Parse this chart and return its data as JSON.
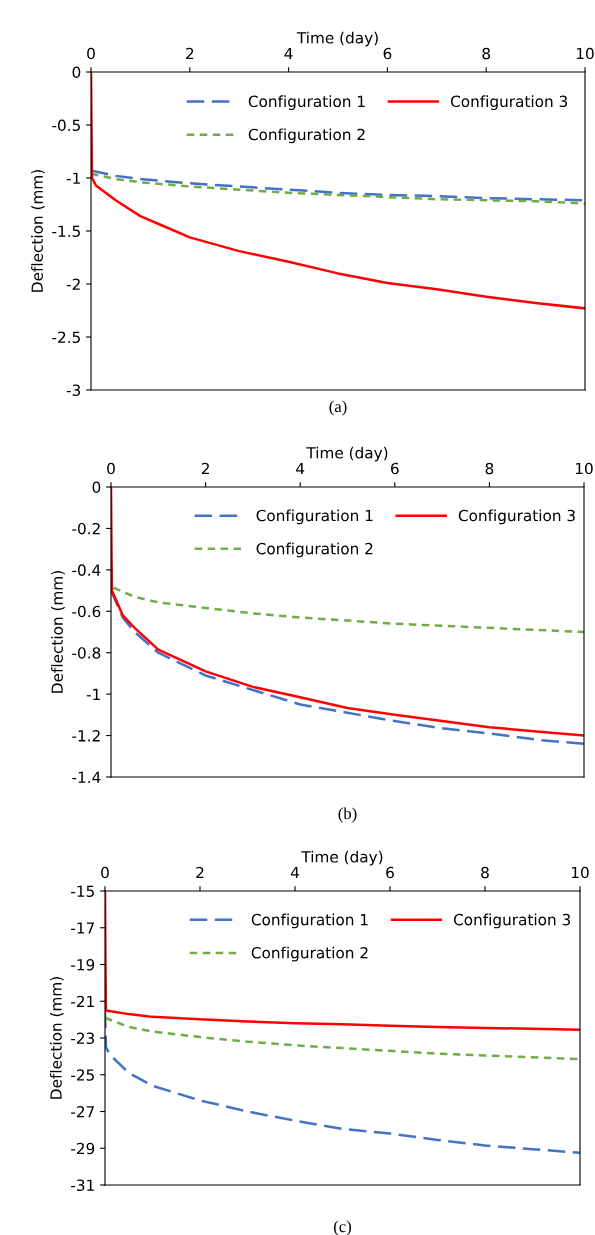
{
  "chart_data": [
    {
      "type": "line",
      "xlabel": "Time (day)",
      "ylabel": "Deflection (mm)",
      "xlim": [
        0,
        10
      ],
      "xticks": [
        0,
        2,
        4,
        6,
        8,
        10
      ],
      "ylim": [
        -3,
        0
      ],
      "yticks": [
        0,
        -0.5,
        -1,
        -1.5,
        -2,
        -2.5,
        -3
      ],
      "grid": false,
      "legend": "top",
      "annotations": [
        "(a)"
      ],
      "series": [
        {
          "name": "Configuration 1",
          "color": "#4472c4",
          "line_style": "dashed",
          "x": [
            0,
            0.5,
            1,
            2,
            3,
            4,
            5,
            6,
            7,
            8,
            9,
            10
          ],
          "values": [
            -0.93,
            -0.98,
            -1.01,
            -1.05,
            -1.08,
            -1.11,
            -1.14,
            -1.16,
            -1.17,
            -1.19,
            -1.2,
            -1.21
          ]
        },
        {
          "name": "Configuration 2",
          "color": "#70ad47",
          "line_style": "dotted",
          "x": [
            0,
            0.5,
            1,
            2,
            3,
            4,
            5,
            6,
            7,
            8,
            9,
            10
          ],
          "values": [
            -0.96,
            -1.01,
            -1.04,
            -1.08,
            -1.11,
            -1.14,
            -1.16,
            -1.18,
            -1.2,
            -1.21,
            -1.22,
            -1.24
          ]
        },
        {
          "name": "Configuration 3",
          "color": "#ff0000",
          "line_style": "solid",
          "x": [
            0,
            0.01,
            0.02,
            0.1,
            0.5,
            1,
            1.5,
            2,
            3,
            4,
            5,
            6,
            7,
            8,
            9,
            10
          ],
          "values": [
            0,
            -0.5,
            -1.0,
            -1.07,
            -1.21,
            -1.36,
            -1.46,
            -1.56,
            -1.69,
            -1.79,
            -1.9,
            -1.99,
            -2.05,
            -2.12,
            -2.18,
            -2.23
          ]
        }
      ]
    },
    {
      "type": "line",
      "xlabel": "Time (day)",
      "ylabel": "Deflection (mm)",
      "xlim": [
        0,
        10
      ],
      "xticks": [
        0,
        2,
        4,
        6,
        8,
        10
      ],
      "ylim": [
        -1.4,
        0
      ],
      "yticks": [
        0,
        -0.2,
        -0.4,
        -0.6,
        -0.8,
        -1,
        -1.2,
        -1.4
      ],
      "grid": false,
      "legend": "top",
      "annotations": [
        "(b)"
      ],
      "series": [
        {
          "name": "Configuration 1",
          "color": "#4472c4",
          "line_style": "dashed",
          "x": [
            0,
            0.25,
            0.5,
            1,
            2,
            3,
            4,
            5,
            6,
            7,
            8,
            9,
            10
          ],
          "values": [
            -0.5,
            -0.63,
            -0.7,
            -0.8,
            -0.91,
            -0.98,
            -1.05,
            -1.09,
            -1.13,
            -1.165,
            -1.19,
            -1.22,
            -1.24
          ]
        },
        {
          "name": "Configuration 2",
          "color": "#70ad47",
          "line_style": "dotted",
          "x": [
            0.05,
            0.5,
            1,
            2,
            3,
            4,
            5,
            6,
            7,
            8,
            9,
            10
          ],
          "values": [
            -0.486,
            -0.53,
            -0.557,
            -0.584,
            -0.61,
            -0.63,
            -0.645,
            -0.66,
            -0.67,
            -0.68,
            -0.69,
            -0.7
          ]
        },
        {
          "name": "Configuration 3",
          "color": "#ff0000",
          "line_style": "solid",
          "x": [
            0,
            0.01,
            0.02,
            0.25,
            0.5,
            1,
            2,
            3,
            4,
            5,
            6,
            7,
            8,
            9,
            10
          ],
          "values": [
            0,
            -0.3,
            -0.5,
            -0.62,
            -0.68,
            -0.785,
            -0.89,
            -0.965,
            -1.015,
            -1.067,
            -1.1,
            -1.13,
            -1.16,
            -1.18,
            -1.2
          ]
        }
      ]
    },
    {
      "type": "line",
      "xlabel": "Time (day)",
      "ylabel": "Deflection (mm)",
      "xlim": [
        0,
        10
      ],
      "xticks": [
        0,
        2,
        4,
        6,
        8,
        10
      ],
      "ylim": [
        -31,
        -15
      ],
      "yticks": [
        -15,
        -17,
        -19,
        -21,
        -23,
        -25,
        -27,
        -29,
        -31
      ],
      "grid": false,
      "legend": "top",
      "annotations": [
        "(c)"
      ],
      "series": [
        {
          "name": "Configuration 1",
          "color": "#4472c4",
          "line_style": "dashed",
          "x": [
            0,
            0.02,
            0.1,
            0.5,
            1,
            2,
            3,
            4,
            5,
            6,
            7,
            8,
            9,
            10
          ],
          "values": [
            -21.5,
            -23.5,
            -23.9,
            -24.9,
            -25.6,
            -26.4,
            -27.0,
            -27.5,
            -27.95,
            -28.2,
            -28.55,
            -28.85,
            -29.05,
            -29.25
          ]
        },
        {
          "name": "Configuration 2",
          "color": "#70ad47",
          "line_style": "dotted",
          "x": [
            0,
            0.5,
            1,
            2,
            3,
            4,
            5,
            6,
            7,
            8,
            9,
            10
          ],
          "values": [
            -21.9,
            -22.4,
            -22.65,
            -22.95,
            -23.2,
            -23.4,
            -23.55,
            -23.7,
            -23.85,
            -23.95,
            -24.05,
            -24.15
          ]
        },
        {
          "name": "Configuration 3",
          "color": "#ff0000",
          "line_style": "solid",
          "x": [
            0,
            0.01,
            0.02,
            0.5,
            1,
            2,
            3,
            4,
            5,
            6,
            7,
            8,
            9,
            10
          ],
          "values": [
            -15,
            -19,
            -21.5,
            -21.7,
            -21.85,
            -21.98,
            -22.1,
            -22.2,
            -22.25,
            -22.33,
            -22.4,
            -22.45,
            -22.5,
            -22.55
          ]
        }
      ]
    }
  ]
}
